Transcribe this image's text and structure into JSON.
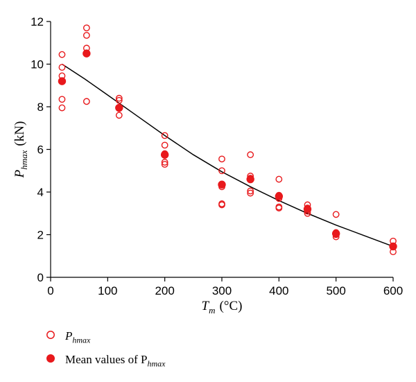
{
  "chart_data": {
    "type": "scatter",
    "title": "",
    "xlabel": "T",
    "xlabel_sub": "m",
    "xlabel_unit": "(°C)",
    "ylabel": "P",
    "ylabel_sub": "hmax",
    "ylabel_unit": "(kN)",
    "xlim": [
      0,
      600
    ],
    "ylim": [
      0,
      12
    ],
    "xticks": [
      0,
      100,
      200,
      300,
      400,
      500,
      600
    ],
    "yticks": [
      0,
      2,
      4,
      6,
      8,
      10,
      12
    ],
    "grid": false,
    "legend_position": "bottom-left",
    "colors": {
      "points": "#e8191c",
      "fit": "#000000"
    },
    "series": [
      {
        "name": "P_hmax",
        "label_main": "P",
        "label_sub": "hmax",
        "marker": "open-circle",
        "points": [
          [
            20,
            10.45
          ],
          [
            20,
            9.85
          ],
          [
            20,
            9.45
          ],
          [
            20,
            8.35
          ],
          [
            20,
            7.95
          ],
          [
            63,
            11.7
          ],
          [
            63,
            11.35
          ],
          [
            63,
            10.75
          ],
          [
            63,
            10.5
          ],
          [
            63,
            8.25
          ],
          [
            120,
            8.4
          ],
          [
            120,
            8.3
          ],
          [
            120,
            7.95
          ],
          [
            120,
            7.6
          ],
          [
            200,
            6.65
          ],
          [
            200,
            6.2
          ],
          [
            200,
            5.8
          ],
          [
            200,
            5.4
          ],
          [
            200,
            5.3
          ],
          [
            300,
            5.55
          ],
          [
            300,
            5.0
          ],
          [
            300,
            4.35
          ],
          [
            300,
            4.25
          ],
          [
            300,
            3.45
          ],
          [
            300,
            3.4
          ],
          [
            350,
            5.75
          ],
          [
            350,
            4.75
          ],
          [
            350,
            4.65
          ],
          [
            350,
            4.05
          ],
          [
            350,
            3.95
          ],
          [
            400,
            4.6
          ],
          [
            400,
            3.85
          ],
          [
            400,
            3.7
          ],
          [
            400,
            3.3
          ],
          [
            400,
            3.25
          ],
          [
            450,
            3.4
          ],
          [
            450,
            3.25
          ],
          [
            450,
            3.1
          ],
          [
            450,
            3.0
          ],
          [
            500,
            2.95
          ],
          [
            500,
            2.1
          ],
          [
            500,
            2.0
          ],
          [
            500,
            1.9
          ],
          [
            600,
            1.7
          ],
          [
            600,
            1.45
          ],
          [
            600,
            1.2
          ]
        ]
      },
      {
        "name": "Mean values of P_hmax",
        "label_main": "Mean values of P",
        "label_sub": "hmax",
        "marker": "filled-circle",
        "points": [
          [
            20,
            9.2
          ],
          [
            63,
            10.5
          ],
          [
            120,
            7.95
          ],
          [
            200,
            5.75
          ],
          [
            300,
            4.35
          ],
          [
            350,
            4.6
          ],
          [
            400,
            3.8
          ],
          [
            450,
            3.2
          ],
          [
            500,
            2.05
          ],
          [
            600,
            1.45
          ]
        ]
      },
      {
        "name": "fit",
        "marker": "line",
        "points": [
          [
            20,
            10.0
          ],
          [
            60,
            9.3
          ],
          [
            100,
            8.55
          ],
          [
            150,
            7.6
          ],
          [
            200,
            6.65
          ],
          [
            250,
            5.75
          ],
          [
            300,
            4.95
          ],
          [
            350,
            4.25
          ],
          [
            400,
            3.6
          ],
          [
            450,
            3.0
          ],
          [
            500,
            2.45
          ],
          [
            550,
            1.95
          ],
          [
            600,
            1.45
          ]
        ]
      }
    ]
  }
}
